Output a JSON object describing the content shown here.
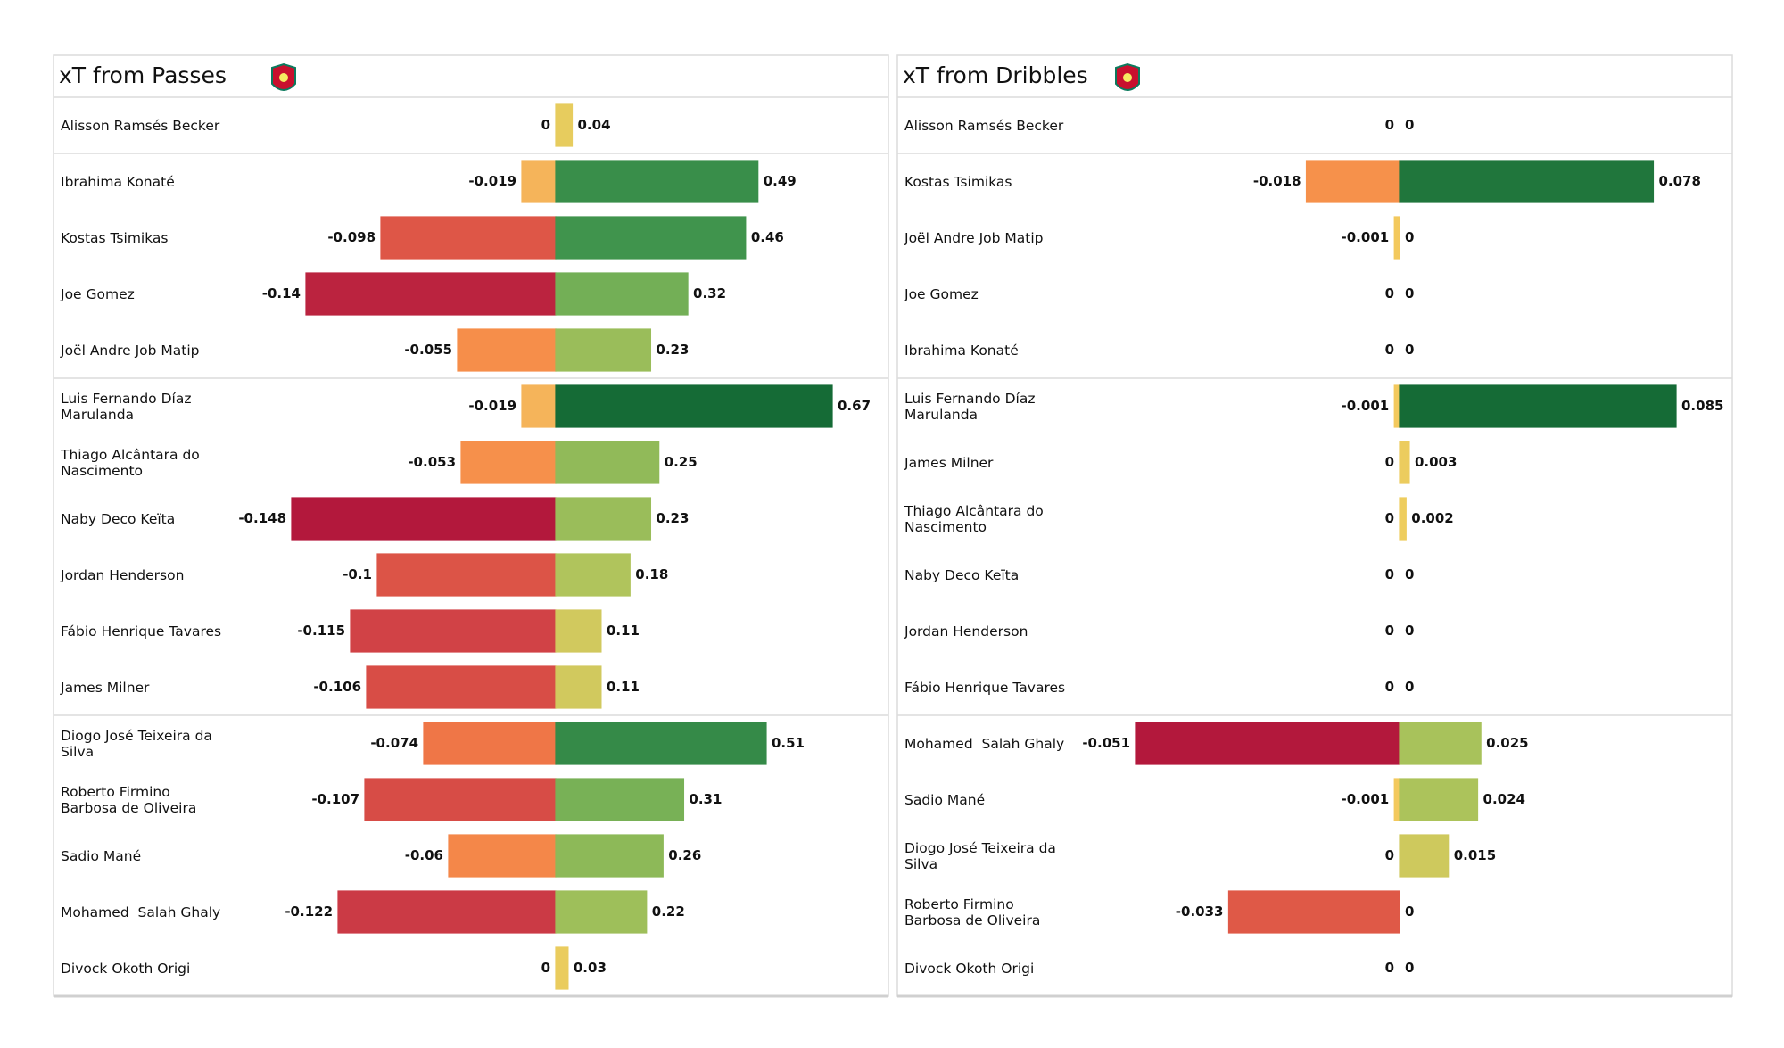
{
  "chart_data": [
    {
      "type": "diverging-bar",
      "title": "xT from Passes",
      "categories": [
        "Alisson Ramsés Becker",
        "Ibrahima Konaté",
        "Kostas Tsimikas",
        "Joe Gomez",
        "Joël Andre Job Matip",
        "Luis Fernando Díaz Marulanda",
        "Thiago Alcântara do Nascimento",
        "Naby Deco Keïta",
        "Jordan Henderson",
        "Fábio Henrique Tavares",
        "James Milner",
        "Diogo José Teixeira da Silva",
        "Roberto Firmino Barbosa de Oliveira",
        "Sadio Mané",
        "Mohamed  Salah Ghaly",
        "Divock Okoth Origi"
      ],
      "series": [
        {
          "values": [
            0,
            -0.019,
            -0.098,
            -0.14,
            -0.055,
            -0.019,
            -0.053,
            -0.148,
            -0.1,
            -0.115,
            -0.106,
            -0.074,
            -0.107,
            -0.06,
            -0.122,
            0
          ]
        },
        {
          "values": [
            0.04,
            0.49,
            0.46,
            0.32,
            0.23,
            0.67,
            0.25,
            0.23,
            0.18,
            0.11,
            0.11,
            0.51,
            0.31,
            0.26,
            0.22,
            0.03
          ]
        }
      ]
    },
    {
      "type": "diverging-bar",
      "title": "xT from Dribbles",
      "categories": [
        "Alisson Ramsés Becker",
        "Kostas Tsimikas",
        "Joël Andre Job Matip",
        "Joe Gomez",
        "Ibrahima Konaté",
        "Luis Fernando Díaz Marulanda",
        "James Milner",
        "Thiago Alcântara do Nascimento",
        "Naby Deco Keïta",
        "Jordan Henderson",
        "Fábio Henrique Tavares",
        "Mohamed  Salah Ghaly",
        "Sadio Mané",
        "Diogo José Teixeira da Silva",
        "Roberto Firmino Barbosa de Oliveira",
        "Divock Okoth Origi"
      ],
      "series": [
        {
          "values": [
            0,
            -0.018,
            -0.001,
            0,
            0,
            -0.001,
            0,
            0,
            0,
            0,
            0,
            -0.051,
            -0.001,
            0,
            -0.033,
            0
          ]
        },
        {
          "values": [
            0,
            0.078,
            0,
            0,
            0,
            0.085,
            0.003,
            0.002,
            0,
            0,
            0,
            0.025,
            0.024,
            0.015,
            0,
            0
          ]
        }
      ]
    }
  ]
}
